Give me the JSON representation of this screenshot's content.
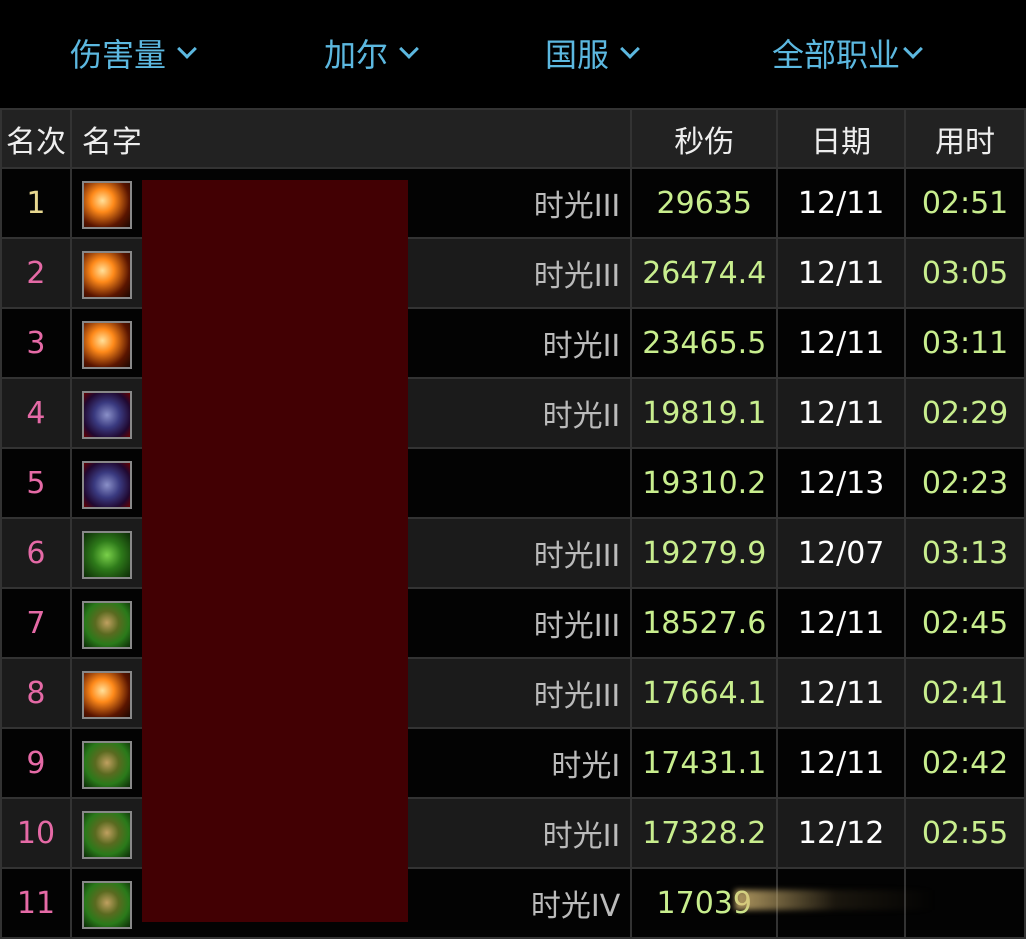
{
  "filters": [
    {
      "label": "伤害量"
    },
    {
      "label": "加尔"
    },
    {
      "label": "国服"
    },
    {
      "label": "全部职业"
    }
  ],
  "table": {
    "headers": {
      "rank": "名次",
      "name": "名字",
      "dps": "秒伤",
      "date": "日期",
      "time": "用时"
    },
    "rows": [
      {
        "rank": "1",
        "icon": "fire-spell-icon",
        "tier": "时光III",
        "dps": "29635",
        "date": "12/11",
        "time": "02:51"
      },
      {
        "rank": "2",
        "icon": "fire-spell-icon",
        "tier": "时光III",
        "dps": "26474.4",
        "date": "12/11",
        "time": "03:05"
      },
      {
        "rank": "3",
        "icon": "fire-spell-icon",
        "tier": "时光II",
        "dps": "23465.5",
        "date": "12/11",
        "time": "03:11"
      },
      {
        "rank": "4",
        "icon": "demon-portrait-icon",
        "tier": "时光II",
        "dps": "19819.1",
        "date": "12/11",
        "time": "02:29"
      },
      {
        "rank": "5",
        "icon": "demon-portrait-icon",
        "tier": "",
        "dps": "19310.2",
        "date": "12/13",
        "time": "02:23"
      },
      {
        "rank": "6",
        "icon": "green-beast-icon",
        "tier": "时光III",
        "dps": "19279.9",
        "date": "12/07",
        "time": "03:13"
      },
      {
        "rank": "7",
        "icon": "green-face-icon",
        "tier": "时光III",
        "dps": "18527.6",
        "date": "12/11",
        "time": "02:45"
      },
      {
        "rank": "8",
        "icon": "fire-spell-icon",
        "tier": "时光III",
        "dps": "17664.1",
        "date": "12/11",
        "time": "02:41"
      },
      {
        "rank": "9",
        "icon": "green-face-icon",
        "tier": "时光I",
        "dps": "17431.1",
        "date": "12/11",
        "time": "02:42"
      },
      {
        "rank": "10",
        "icon": "green-face-icon",
        "tier": "时光II",
        "dps": "17328.2",
        "date": "12/12",
        "time": "02:55"
      },
      {
        "rank": "11",
        "icon": "green-face-icon",
        "tier": "时光IV",
        "dps": "17039",
        "date": "",
        "time": ""
      }
    ]
  },
  "colors": {
    "filter": "#5cb8e0",
    "rank_first": "#e8d890",
    "rank_other": "#e56aa6",
    "dps": "#c8ee8e",
    "redaction": "#420003"
  }
}
